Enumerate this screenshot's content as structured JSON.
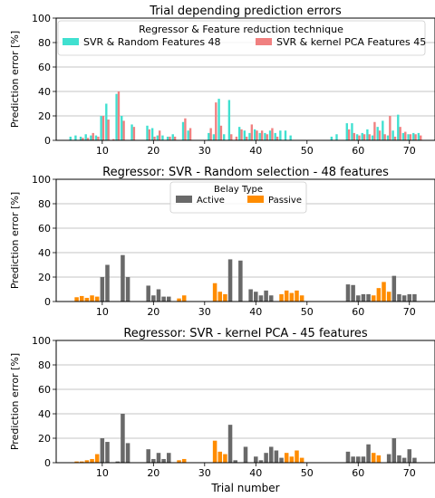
{
  "colors": {
    "random": "#40E0D0",
    "kpca": "#F08080",
    "active": "#696969",
    "passive": "#FF8C00",
    "grid": "#b0b0b0"
  },
  "chart_data": [
    {
      "type": "bar",
      "title": "Trial depending prediction errors",
      "ylabel": "Prediction error [%]",
      "xlabel": "",
      "xlim": [
        1,
        75
      ],
      "ylim": [
        0,
        100
      ],
      "xticks": [
        10,
        20,
        30,
        40,
        50,
        60,
        70
      ],
      "yticks": [
        0,
        20,
        40,
        60,
        80,
        100
      ],
      "grid": "y",
      "legend": {
        "title": "Regressor & Feature reduction technique",
        "placement": "top-center",
        "entries": [
          "SVR & Random Features 48",
          "SVR & kernel PCA Features 45"
        ]
      },
      "x": [
        4,
        5,
        6,
        7,
        8,
        9,
        10,
        11,
        12,
        13,
        14,
        15,
        16,
        19,
        20,
        21,
        22,
        23,
        24,
        26,
        27,
        31,
        32,
        33,
        34,
        35,
        36,
        37,
        38,
        39,
        40,
        41,
        42,
        43,
        44,
        45,
        46,
        47,
        48,
        49,
        50,
        51,
        55,
        56,
        58,
        59,
        60,
        61,
        62,
        63,
        64,
        65,
        66,
        67,
        68,
        69,
        70,
        71,
        72
      ],
      "series": [
        {
          "name": "SVR & Random Features 48",
          "color": "random",
          "values": [
            3,
            4,
            3,
            5,
            4,
            4,
            20,
            30,
            0,
            38,
            20,
            0,
            13,
            12,
            10,
            4,
            4,
            3,
            5,
            15,
            8,
            6,
            5,
            34,
            5,
            33,
            0,
            11,
            8,
            6,
            9,
            6,
            6,
            8,
            6,
            8,
            8,
            4,
            0,
            0,
            0,
            0,
            3,
            5,
            14,
            14,
            5,
            6,
            9,
            4,
            11,
            16,
            4,
            8,
            21,
            6,
            5,
            6,
            6
          ]
        },
        {
          "name": "SVR & kernel PCA Features 45",
          "color": "kpca",
          "values": [
            0,
            0,
            2,
            2,
            6,
            3,
            20,
            17,
            1,
            40,
            16,
            0,
            11,
            9,
            3,
            8,
            0,
            3,
            3,
            18,
            10,
            10,
            31,
            12,
            0,
            5,
            3,
            9,
            3,
            13,
            8,
            8,
            5,
            10,
            3,
            0,
            0,
            0,
            0,
            0,
            0,
            0,
            0,
            0,
            9,
            6,
            4,
            5,
            5,
            15,
            8,
            5,
            20,
            3,
            11,
            7,
            5,
            5,
            4
          ]
        }
      ]
    },
    {
      "type": "bar",
      "title": "Regressor: SVR - Random selection - 48 features",
      "ylabel": "Prediction error [%]",
      "xlabel": "",
      "xlim": [
        1,
        75
      ],
      "ylim": [
        0,
        100
      ],
      "xticks": [
        10,
        20,
        30,
        40,
        50,
        60,
        70
      ],
      "yticks": [
        0,
        20,
        40,
        60,
        80,
        100
      ],
      "grid": "y",
      "legend": {
        "title": "Belay Type",
        "placement": "top-center",
        "entries": [
          "Active",
          "Passive"
        ]
      },
      "bars": [
        {
          "x": 5,
          "v": 3.5,
          "t": "passive"
        },
        {
          "x": 6,
          "v": 4.5,
          "t": "passive"
        },
        {
          "x": 7,
          "v": 3,
          "t": "passive"
        },
        {
          "x": 8,
          "v": 5,
          "t": "passive"
        },
        {
          "x": 9,
          "v": 4,
          "t": "passive"
        },
        {
          "x": 10,
          "v": 20,
          "t": "active"
        },
        {
          "x": 11,
          "v": 30,
          "t": "active"
        },
        {
          "x": 14,
          "v": 38,
          "t": "active"
        },
        {
          "x": 15,
          "v": 20,
          "t": "active"
        },
        {
          "x": 19,
          "v": 13,
          "t": "active"
        },
        {
          "x": 20,
          "v": 5,
          "t": "active"
        },
        {
          "x": 21,
          "v": 10,
          "t": "active"
        },
        {
          "x": 22,
          "v": 4,
          "t": "active"
        },
        {
          "x": 23,
          "v": 4,
          "t": "active"
        },
        {
          "x": 25,
          "v": 2.5,
          "t": "passive"
        },
        {
          "x": 26,
          "v": 5,
          "t": "passive"
        },
        {
          "x": 32,
          "v": 15,
          "t": "passive"
        },
        {
          "x": 33,
          "v": 8,
          "t": "passive"
        },
        {
          "x": 34,
          "v": 6,
          "t": "passive"
        },
        {
          "x": 35,
          "v": 34.5,
          "t": "active"
        },
        {
          "x": 37,
          "v": 33.5,
          "t": "active"
        },
        {
          "x": 39,
          "v": 10,
          "t": "active"
        },
        {
          "x": 40,
          "v": 8,
          "t": "active"
        },
        {
          "x": 41,
          "v": 5,
          "t": "active"
        },
        {
          "x": 42,
          "v": 9,
          "t": "active"
        },
        {
          "x": 43,
          "v": 5,
          "t": "active"
        },
        {
          "x": 45,
          "v": 6,
          "t": "passive"
        },
        {
          "x": 46,
          "v": 9,
          "t": "passive"
        },
        {
          "x": 47,
          "v": 7,
          "t": "passive"
        },
        {
          "x": 48,
          "v": 9,
          "t": "passive"
        },
        {
          "x": 49,
          "v": 5,
          "t": "passive"
        },
        {
          "x": 58,
          "v": 14,
          "t": "active"
        },
        {
          "x": 59,
          "v": 13.5,
          "t": "active"
        },
        {
          "x": 60,
          "v": 5,
          "t": "active"
        },
        {
          "x": 61,
          "v": 6,
          "t": "active"
        },
        {
          "x": 62,
          "v": 6,
          "t": "active"
        },
        {
          "x": 63,
          "v": 5,
          "t": "passive"
        },
        {
          "x": 64,
          "v": 11,
          "t": "passive"
        },
        {
          "x": 65,
          "v": 16,
          "t": "passive"
        },
        {
          "x": 66,
          "v": 8,
          "t": "passive"
        },
        {
          "x": 67,
          "v": 21,
          "t": "active"
        },
        {
          "x": 68,
          "v": 6,
          "t": "active"
        },
        {
          "x": 69,
          "v": 5,
          "t": "active"
        },
        {
          "x": 70,
          "v": 6,
          "t": "active"
        },
        {
          "x": 71,
          "v": 6,
          "t": "active"
        }
      ]
    },
    {
      "type": "bar",
      "title": "Regressor: SVR - kernel PCA - 45 features",
      "ylabel": "Prediction error [%]",
      "xlabel": "Trial number",
      "xlim": [
        1,
        75
      ],
      "ylim": [
        0,
        100
      ],
      "xticks": [
        10,
        20,
        30,
        40,
        50,
        60,
        70
      ],
      "yticks": [
        0,
        20,
        40,
        60,
        80,
        100
      ],
      "grid": "y",
      "bars": [
        {
          "x": 5,
          "v": 1,
          "t": "passive"
        },
        {
          "x": 6,
          "v": 1,
          "t": "passive"
        },
        {
          "x": 7,
          "v": 2,
          "t": "passive"
        },
        {
          "x": 8,
          "v": 3,
          "t": "passive"
        },
        {
          "x": 9,
          "v": 7,
          "t": "passive"
        },
        {
          "x": 10,
          "v": 20,
          "t": "active"
        },
        {
          "x": 11,
          "v": 17,
          "t": "active"
        },
        {
          "x": 13,
          "v": 1,
          "t": "active"
        },
        {
          "x": 14,
          "v": 40,
          "t": "active"
        },
        {
          "x": 15,
          "v": 16,
          "t": "active"
        },
        {
          "x": 19,
          "v": 11,
          "t": "active"
        },
        {
          "x": 20,
          "v": 3,
          "t": "active"
        },
        {
          "x": 21,
          "v": 8,
          "t": "active"
        },
        {
          "x": 22,
          "v": 3,
          "t": "active"
        },
        {
          "x": 23,
          "v": 8,
          "t": "active"
        },
        {
          "x": 25,
          "v": 2,
          "t": "passive"
        },
        {
          "x": 26,
          "v": 3,
          "t": "passive"
        },
        {
          "x": 32,
          "v": 18,
          "t": "passive"
        },
        {
          "x": 33,
          "v": 9,
          "t": "passive"
        },
        {
          "x": 34,
          "v": 7,
          "t": "passive"
        },
        {
          "x": 35,
          "v": 31,
          "t": "active"
        },
        {
          "x": 36,
          "v": 2,
          "t": "active"
        },
        {
          "x": 38,
          "v": 13,
          "t": "active"
        },
        {
          "x": 40,
          "v": 5,
          "t": "active"
        },
        {
          "x": 41,
          "v": 2,
          "t": "active"
        },
        {
          "x": 42,
          "v": 8,
          "t": "active"
        },
        {
          "x": 43,
          "v": 13,
          "t": "active"
        },
        {
          "x": 44,
          "v": 10,
          "t": "active"
        },
        {
          "x": 45,
          "v": 4,
          "t": "active"
        },
        {
          "x": 46,
          "v": 8,
          "t": "passive"
        },
        {
          "x": 47,
          "v": 5,
          "t": "passive"
        },
        {
          "x": 48,
          "v": 10,
          "t": "passive"
        },
        {
          "x": 49,
          "v": 4,
          "t": "passive"
        },
        {
          "x": 58,
          "v": 9,
          "t": "active"
        },
        {
          "x": 59,
          "v": 5,
          "t": "active"
        },
        {
          "x": 60,
          "v": 5,
          "t": "active"
        },
        {
          "x": 61,
          "v": 5,
          "t": "active"
        },
        {
          "x": 62,
          "v": 15,
          "t": "active"
        },
        {
          "x": 63,
          "v": 8,
          "t": "passive"
        },
        {
          "x": 64,
          "v": 6,
          "t": "passive"
        },
        {
          "x": 66,
          "v": 7,
          "t": "active"
        },
        {
          "x": 67,
          "v": 20,
          "t": "active"
        },
        {
          "x": 68,
          "v": 6,
          "t": "active"
        },
        {
          "x": 69,
          "v": 4,
          "t": "active"
        },
        {
          "x": 70,
          "v": 11,
          "t": "active"
        },
        {
          "x": 71,
          "v": 4,
          "t": "active"
        }
      ]
    }
  ]
}
